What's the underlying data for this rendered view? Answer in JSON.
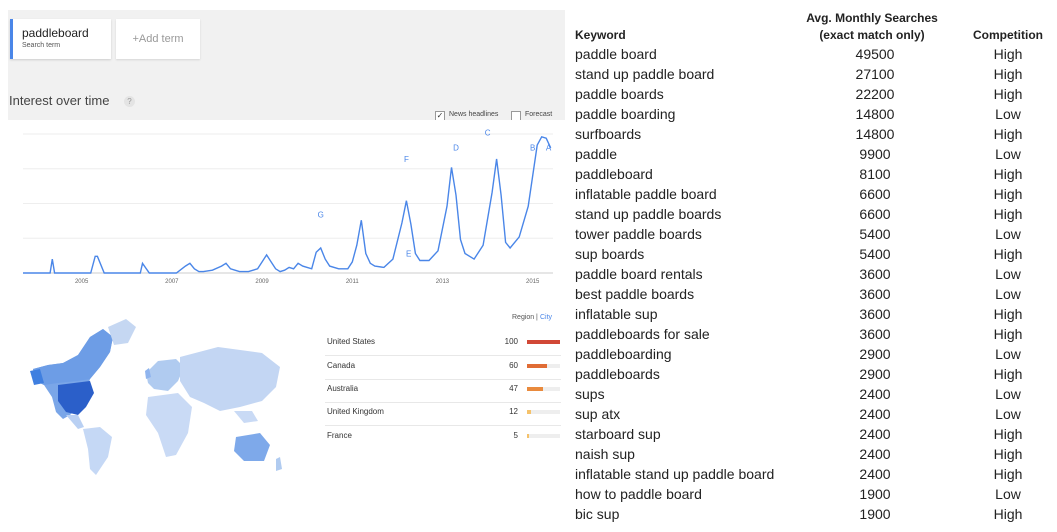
{
  "search": {
    "term": "paddleboard",
    "term_sub": "Search term",
    "add_term": "+Add term"
  },
  "trends": {
    "title": "Interest over time",
    "help": "?",
    "news_headlines": "News headlines",
    "news_checked": true,
    "news_check_mark": "✓",
    "forecast": "Forecast",
    "forecast_checked": false
  },
  "regions": {
    "region_label": "Region",
    "divider": "|",
    "city_label": "City",
    "items": [
      {
        "name": "United States",
        "value": "100",
        "fraction": 1.0,
        "color": "#d14836"
      },
      {
        "name": "Canada",
        "value": "60",
        "fraction": 0.6,
        "color": "#e06c35"
      },
      {
        "name": "Australia",
        "value": "47",
        "fraction": 0.47,
        "color": "#e98a3d"
      },
      {
        "name": "United Kingdom",
        "value": "12",
        "fraction": 0.12,
        "color": "#f5c26b"
      },
      {
        "name": "France",
        "value": "5",
        "fraction": 0.05,
        "color": "#f5c26b"
      }
    ]
  },
  "chart_data": {
    "type": "line",
    "title": "",
    "x_tick_labels": [
      "2005",
      "2007",
      "2009",
      "2011",
      "2013",
      "2015"
    ],
    "annotations": [
      "G",
      "F",
      "E",
      "D",
      "C",
      "B",
      "A"
    ],
    "series": [
      {
        "color": "#4a86e8",
        "x": [
          2004.0,
          2004.6,
          2004.65,
          2004.7,
          2004.8,
          2005.5,
          2005.6,
          2005.65,
          2005.8,
          2006.6,
          2006.65,
          2006.8,
          2007.0,
          2007.2,
          2007.4,
          2007.6,
          2007.7,
          2007.8,
          2007.9,
          2008.0,
          2008.2,
          2008.4,
          2008.5,
          2008.6,
          2008.7,
          2008.8,
          2009.0,
          2009.2,
          2009.3,
          2009.4,
          2009.5,
          2009.6,
          2009.7,
          2009.8,
          2009.9,
          2010.0,
          2010.1,
          2010.2,
          2010.3,
          2010.4,
          2010.5,
          2010.6,
          2010.7,
          2010.8,
          2011.0,
          2011.2,
          2011.3,
          2011.4,
          2011.5,
          2011.6,
          2011.7,
          2011.8,
          2012.0,
          2012.2,
          2012.4,
          2012.5,
          2012.6,
          2012.7,
          2012.8,
          2013.0,
          2013.2,
          2013.4,
          2013.5,
          2013.6,
          2013.7,
          2013.8,
          2014.0,
          2014.2,
          2014.4,
          2014.5,
          2014.6,
          2014.7,
          2014.8,
          2015.0,
          2015.2,
          2015.4,
          2015.5,
          2015.6,
          2015.7
        ],
        "y": [
          0,
          0,
          10,
          0,
          0,
          0,
          12,
          12,
          0,
          0,
          7,
          0,
          0,
          0,
          0,
          5,
          7,
          3,
          1,
          1,
          2,
          5,
          7,
          3,
          2,
          1,
          1,
          3,
          8,
          13,
          8,
          3,
          1,
          2,
          4,
          3,
          7,
          5,
          4,
          3,
          15,
          18,
          10,
          5,
          3,
          3,
          8,
          20,
          38,
          14,
          7,
          5,
          4,
          10,
          36,
          52,
          35,
          14,
          9,
          9,
          16,
          48,
          76,
          56,
          24,
          14,
          10,
          20,
          58,
          82,
          56,
          22,
          18,
          26,
          48,
          92,
          98,
          97,
          90
        ]
      }
    ]
  },
  "keywords": {
    "header_keyword": "Keyword",
    "header_avg_line1": "Avg. Monthly Searches",
    "header_avg_line2": "(exact match only)",
    "header_competition": "Competition",
    "rows": [
      {
        "keyword": "paddle board",
        "searches": "49500",
        "competition": "High"
      },
      {
        "keyword": "stand up paddle board",
        "searches": "27100",
        "competition": "High"
      },
      {
        "keyword": "paddle boards",
        "searches": "22200",
        "competition": "High"
      },
      {
        "keyword": "paddle boarding",
        "searches": "14800",
        "competition": "Low"
      },
      {
        "keyword": "surfboards",
        "searches": "14800",
        "competition": "High"
      },
      {
        "keyword": "paddle",
        "searches": "9900",
        "competition": "Low"
      },
      {
        "keyword": "paddleboard",
        "searches": "8100",
        "competition": "High"
      },
      {
        "keyword": "inflatable paddle board",
        "searches": "6600",
        "competition": "High"
      },
      {
        "keyword": "stand up paddle boards",
        "searches": "6600",
        "competition": "High"
      },
      {
        "keyword": "tower paddle boards",
        "searches": "5400",
        "competition": "Low"
      },
      {
        "keyword": "sup boards",
        "searches": "5400",
        "competition": "High"
      },
      {
        "keyword": "paddle board rentals",
        "searches": "3600",
        "competition": "Low"
      },
      {
        "keyword": "best paddle boards",
        "searches": "3600",
        "competition": "Low"
      },
      {
        "keyword": "inflatable sup",
        "searches": "3600",
        "competition": "High"
      },
      {
        "keyword": "paddleboards for sale",
        "searches": "3600",
        "competition": "High"
      },
      {
        "keyword": "paddleboarding",
        "searches": "2900",
        "competition": "Low"
      },
      {
        "keyword": "paddleboards",
        "searches": "2900",
        "competition": "High"
      },
      {
        "keyword": "sups",
        "searches": "2400",
        "competition": "Low"
      },
      {
        "keyword": "sup atx",
        "searches": "2400",
        "competition": "Low"
      },
      {
        "keyword": "starboard sup",
        "searches": "2400",
        "competition": "High"
      },
      {
        "keyword": "naish sup",
        "searches": "2400",
        "competition": "High"
      },
      {
        "keyword": "inflatable stand up paddle board",
        "searches": "2400",
        "competition": "High"
      },
      {
        "keyword": "how to paddle board",
        "searches": "1900",
        "competition": "Low"
      },
      {
        "keyword": "bic sup",
        "searches": "1900",
        "competition": "High"
      }
    ]
  }
}
